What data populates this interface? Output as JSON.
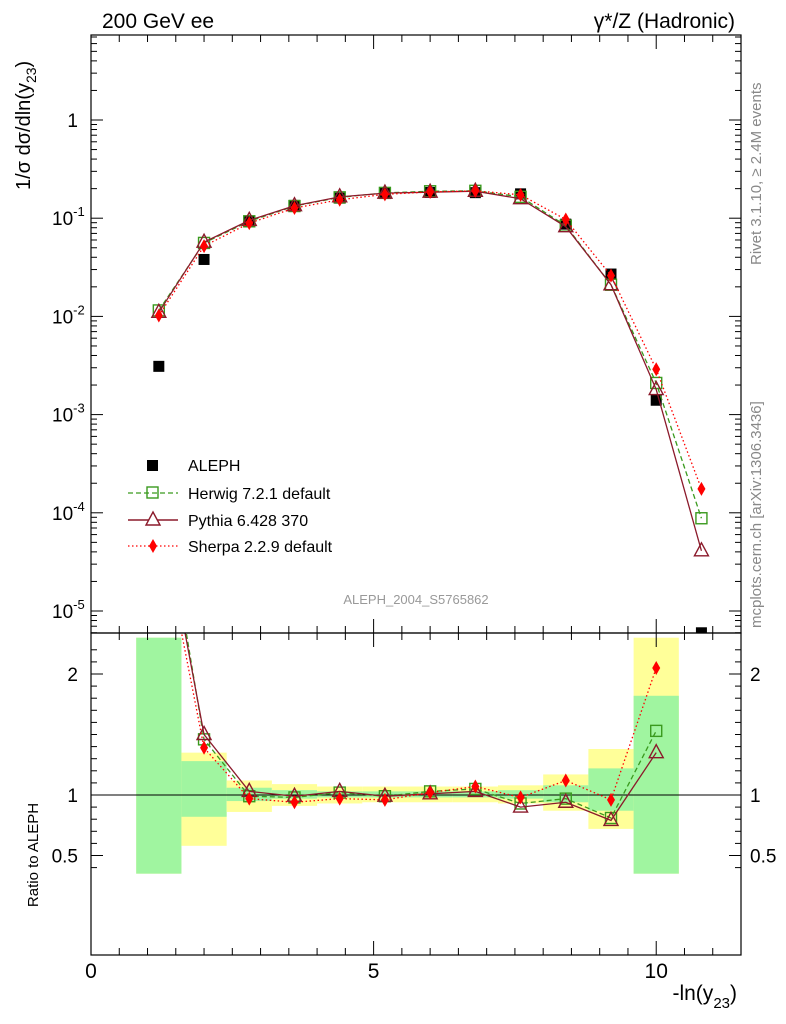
{
  "header": {
    "left_title": "200 GeV ee",
    "right_title": "γ*/Z (Hadronic)"
  },
  "side_labels": {
    "rivet": "Rivet 3.1.10, ≥ 2.4M events",
    "mcplots": "mcplots.cern.ch [arXiv:1306.3436]"
  },
  "watermark": "ALEPH_2004_S5765862",
  "colors": {
    "data": "#000000",
    "herwig": "#3a9a1e",
    "pythia": "#8b1a2b",
    "sherpa": "#ff0000",
    "band_green": "#a0f5a0",
    "band_yellow": "#ffff99"
  },
  "chart_data": [
    {
      "type": "line",
      "panel": "main",
      "ylabel": "1/σ dσ/dln(y23)",
      "yscale": "log",
      "ylim": [
        5e-06,
        8
      ],
      "xlim": [
        0,
        11.5
      ],
      "y_tick_labels": [
        "10^-5",
        "10^-4",
        "10^-3",
        "10^-2",
        "10^-1",
        "1"
      ],
      "legend_position": "lower-left",
      "x": [
        1.2,
        2.0,
        2.8,
        3.6,
        4.4,
        5.2,
        6.0,
        6.8,
        7.6,
        8.4,
        9.2,
        10.0,
        10.8
      ],
      "series": [
        {
          "name": "ALEPH",
          "style": "data",
          "values": [
            0.0031,
            0.038,
            0.092,
            0.135,
            0.16,
            0.182,
            0.183,
            0.182,
            0.177,
            0.087,
            0.027,
            0.0014,
            6e-06
          ]
        },
        {
          "name": "Herwig 7.2.1 default",
          "style": "herwig",
          "values": [
            0.0115,
            0.056,
            0.093,
            0.133,
            0.163,
            0.181,
            0.188,
            0.19,
            0.165,
            0.084,
            0.021,
            0.0021,
            8.8e-05
          ]
        },
        {
          "name": "Pythia 6.428 370",
          "style": "pythia",
          "values": [
            0.011,
            0.057,
            0.095,
            0.134,
            0.165,
            0.18,
            0.184,
            0.188,
            0.158,
            0.082,
            0.021,
            0.0018,
            4.1e-05
          ]
        },
        {
          "name": "Sherpa 2.2.9 default",
          "style": "sherpa",
          "values": [
            0.0102,
            0.052,
            0.089,
            0.127,
            0.154,
            0.175,
            0.185,
            0.19,
            0.173,
            0.097,
            0.026,
            0.0029,
            0.000175
          ]
        }
      ]
    },
    {
      "type": "line",
      "panel": "ratio",
      "ylabel": "Ratio to ALEPH",
      "xlabel": "-ln(y23)",
      "ylim": [
        0.35,
        2.25
      ],
      "xlim": [
        0,
        11.5
      ],
      "y_ticks": [
        0.5,
        1,
        2
      ],
      "y_tick_labels": [
        "0.5",
        "1",
        "2"
      ],
      "x_ticks": [
        0,
        5,
        10
      ],
      "x_tick_labels": [
        "0",
        "5",
        "10"
      ],
      "x": [
        1.2,
        2.0,
        2.8,
        3.6,
        4.4,
        5.2,
        6.0,
        6.8,
        7.6,
        8.4,
        9.2,
        10.0,
        10.8
      ],
      "bands": {
        "bin_edges": [
          0.8,
          1.6,
          2.4,
          3.2,
          4.0,
          4.8,
          5.6,
          6.4,
          7.2,
          8.0,
          8.8,
          9.6,
          10.4
        ],
        "green_low": [
          0.35,
          0.82,
          0.95,
          0.97,
          0.98,
          0.98,
          0.98,
          0.98,
          0.97,
          0.94,
          0.87,
          0.35
        ],
        "green_high": [
          2.3,
          1.28,
          1.06,
          1.04,
          1.03,
          1.03,
          1.03,
          1.03,
          1.04,
          1.08,
          1.22,
          1.82
        ],
        "yellow_low": [
          0.35,
          0.58,
          0.86,
          0.91,
          0.93,
          0.94,
          0.94,
          0.94,
          0.93,
          0.87,
          0.72,
          0.35
        ],
        "yellow_high": [
          2.3,
          1.35,
          1.12,
          1.09,
          1.07,
          1.07,
          1.07,
          1.07,
          1.08,
          1.17,
          1.38,
          2.3
        ]
      },
      "series": [
        {
          "name": "Herwig 7.2.1 default",
          "style": "herwig",
          "values": [
            3.7,
            1.46,
            0.99,
            0.98,
            1.02,
            0.99,
            1.03,
            1.05,
            0.93,
            0.97,
            0.81,
            1.53,
            null
          ]
        },
        {
          "name": "Pythia 6.428 370",
          "style": "pythia",
          "values": [
            3.5,
            1.5,
            1.03,
            0.99,
            1.03,
            0.99,
            1.01,
            1.03,
            0.9,
            0.94,
            0.79,
            1.35,
            null
          ]
        },
        {
          "name": "Sherpa 2.2.9 default",
          "style": "sherpa",
          "values": [
            3.3,
            1.39,
            0.97,
            0.94,
            0.97,
            0.96,
            1.02,
            1.07,
            0.98,
            1.12,
            0.96,
            2.05,
            null
          ]
        }
      ]
    }
  ]
}
